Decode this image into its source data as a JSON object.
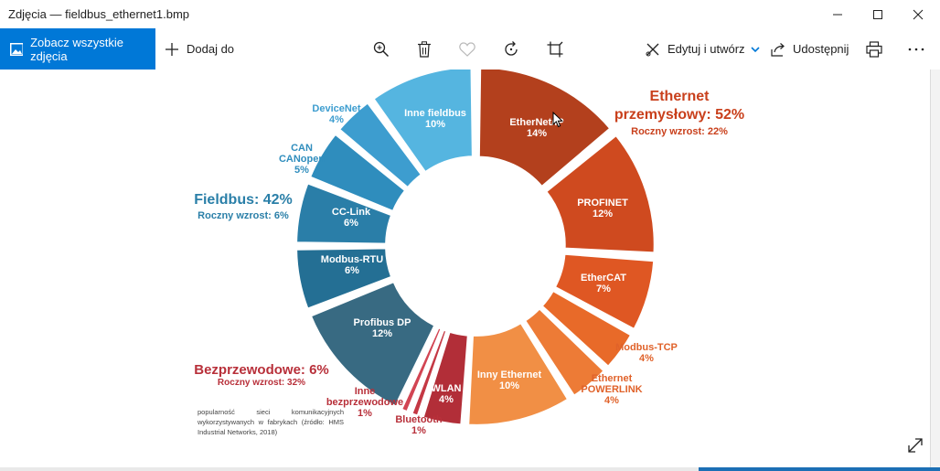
{
  "window": {
    "title": "Zdjęcia — fieldbus_ethernet1.bmp"
  },
  "toolbar": {
    "see_all_label": "Zobacz wszystkie zdjęcia",
    "add_to_label": "Dodaj do",
    "edit_create_label": "Edytuj i utwórz",
    "share_label": "Udostępnij"
  },
  "chart_data": {
    "type": "pie",
    "groups": [
      {
        "name": "Ethernet przemysłowy: 52%",
        "growth": "Roczny wzrost: 22%",
        "color": "#c9401c"
      },
      {
        "name": "Fieldbus: 42%",
        "growth": "Roczny wzrost: 6%",
        "color": "#2a7fa8"
      },
      {
        "name": "Bezprzewodowe: 6%",
        "growth": "Roczny wzrost: 32%",
        "color": "#b8303a"
      }
    ],
    "slices": [
      {
        "label": "EtherNet/IP",
        "value": 14,
        "value_label": "14%",
        "color": "#b3401d"
      },
      {
        "label": "PROFINET",
        "value": 12,
        "value_label": "12%",
        "color": "#cf4a1f"
      },
      {
        "label": "EtherCAT",
        "value": 7,
        "value_label": "7%",
        "color": "#df5723"
      },
      {
        "label": "Modbus-TCP",
        "value": 4,
        "value_label": "4%",
        "color": "#e86a29"
      },
      {
        "label": "Ethernet POWERLINK",
        "value": 4,
        "value_label": "4%",
        "color": "#ed7b36"
      },
      {
        "label": "Inny Ethernet",
        "value": 10,
        "value_label": "10%",
        "color": "#f18f45"
      },
      {
        "label": "WLAN",
        "value": 4,
        "value_label": "4%",
        "color": "#b22e38"
      },
      {
        "label": "Bluetooth",
        "value": 1,
        "value_label": "1%",
        "color": "#c43844"
      },
      {
        "label": "Inne bezprzewodowe",
        "value": 1,
        "value_label": "1%",
        "color": "#d24553"
      },
      {
        "label": "Profibus DP",
        "value": 12,
        "value_label": "12%",
        "color": "#386a82"
      },
      {
        "label": "Modbus-RTU",
        "value": 6,
        "value_label": "6%",
        "color": "#246f94"
      },
      {
        "label": "CC-Link",
        "value": 6,
        "value_label": "6%",
        "color": "#2a7ea8"
      },
      {
        "label": "CAN CANopen",
        "value": 5,
        "value_label": "5%",
        "color": "#2f8dbd"
      },
      {
        "label": "DeviceNet",
        "value": 4,
        "value_label": "4%",
        "color": "#3d9dcf"
      },
      {
        "label": "Inne fieldbus",
        "value": 10,
        "value_label": "10%",
        "color": "#55b5e0"
      }
    ],
    "source_note": "popularność sieci komunikacyjnych wykorzystywanych w fabrykach (źródło: HMS Industrial Networks, 2018)"
  },
  "labels": {
    "ethernet_title_1": "Ethernet",
    "ethernet_title_2": "przemysłowy: 52%",
    "ethernet_growth": "Roczny wzrost: 22%",
    "fieldbus_title": "Fieldbus: 42%",
    "fieldbus_growth": "Roczny wzrost: 6%",
    "wireless_title": "Bezprzewodowe: 6%",
    "wireless_growth": "Roczny wzrost: 32%",
    "ethernetip": "EtherNet/IP",
    "ethernetip_pct": "14%",
    "profinet": "PROFINET",
    "profinet_pct": "12%",
    "ethercat": "EtherCAT",
    "ethercat_pct": "7%",
    "modbustcp": "Modbus-TCP",
    "modbustcp_pct": "4%",
    "powerlink_1": "Ethernet",
    "powerlink_2": "POWERLINK",
    "powerlink_pct": "4%",
    "inny_ethernet": "Inny Ethernet",
    "inny_ethernet_pct": "10%",
    "wlan": "WLAN",
    "wlan_pct": "4%",
    "bluetooth": "Bluetooth",
    "bluetooth_pct": "1%",
    "inne_bezp_1": "Inne",
    "inne_bezp_2": "bezprzewodowe",
    "inne_bezp_pct": "1%",
    "profibus": "Profibus DP",
    "profibus_pct": "12%",
    "modbusrtu": "Modbus-RTU",
    "modbusrtu_pct": "6%",
    "cclink": "CC-Link",
    "cclink_pct": "6%",
    "can_1": "CAN",
    "can_2": "CANopen",
    "can_pct": "5%",
    "devicenet": "DeviceNet",
    "devicenet_pct": "4%",
    "inne_fieldbus": "Inne fieldbus",
    "inne_fieldbus_pct": "10%",
    "source_note": "popularność sieci komunikacyjnych wykorzystywanych w fabrykach (źródło: HMS Industrial Networks, 2018)"
  }
}
